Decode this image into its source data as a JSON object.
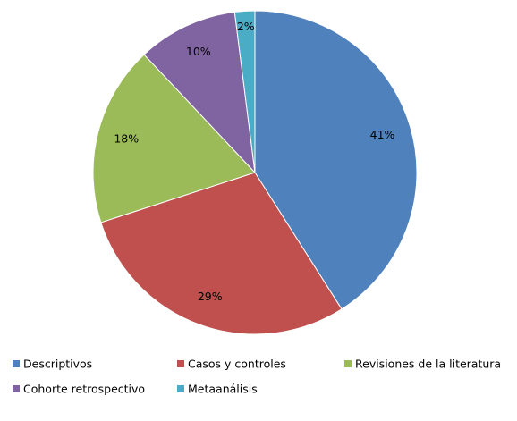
{
  "chart_data": {
    "type": "pie",
    "categories": [
      "Descriptivos",
      "Casos y controles",
      "Revisiones de la literatura",
      "Cohorte retrospectivo",
      "Metaanálisis"
    ],
    "values": [
      41,
      29,
      18,
      10,
      2
    ],
    "value_labels": [
      "41%",
      "29%",
      "18%",
      "10%",
      "2%"
    ],
    "colors": [
      "#4f81bd",
      "#c0504d",
      "#9bbb59",
      "#8064a2",
      "#4bacc6"
    ],
    "legend": "bottom"
  }
}
